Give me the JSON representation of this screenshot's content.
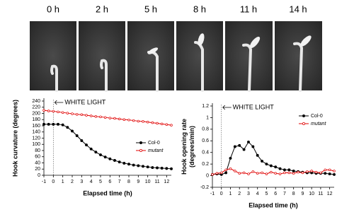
{
  "photo_strip": {
    "labels": [
      "0 h",
      "2 h",
      "5 h",
      "8 h",
      "11 h",
      "14 h"
    ]
  },
  "chart_data": [
    {
      "type": "line",
      "y_label": [
        "Hook curvature (degrees)"
      ],
      "x_label": "Elapsed time (h)",
      "annotation": "WHITE LIGHT",
      "vline": 0,
      "xlim": [
        -1,
        12.5
      ],
      "xticks": [
        -1,
        0,
        1,
        2,
        3,
        4,
        5,
        6,
        7,
        8,
        9,
        10,
        11,
        12
      ],
      "ylim": [
        0,
        240
      ],
      "yticks": [
        0,
        20,
        40,
        60,
        80,
        100,
        120,
        140,
        160,
        180,
        200,
        220,
        240
      ],
      "legend": "lower right",
      "x": [
        -1,
        -0.5,
        0,
        0.5,
        1,
        1.5,
        2,
        2.5,
        3,
        3.5,
        4,
        4.5,
        5,
        5.5,
        6,
        6.5,
        7,
        7.5,
        8,
        8.5,
        9,
        9.5,
        10,
        10.5,
        11,
        11.5,
        12,
        12.5
      ],
      "series": [
        {
          "name": "Col-0",
          "color": "#000000",
          "font_style": "normal",
          "values": [
            165,
            165,
            165,
            165,
            163,
            155,
            143,
            128,
            112,
            98,
            85,
            75,
            66,
            59,
            53,
            48,
            43,
            39,
            36,
            33,
            31,
            29,
            27,
            25,
            24,
            23,
            22,
            21
          ]
        },
        {
          "name": "mutant",
          "color": "#e00000",
          "font_style": "italic",
          "values": [
            210,
            208,
            207,
            205,
            203,
            201,
            199,
            197,
            196,
            194,
            192,
            190,
            189,
            187,
            185,
            184,
            182,
            180,
            179,
            177,
            175,
            174,
            172,
            170,
            168,
            166,
            164,
            162
          ]
        }
      ]
    },
    {
      "type": "line",
      "y_label": [
        "Hook opening rate",
        "(degrees/min)"
      ],
      "x_label": "Elapsed time (h)",
      "annotation": "WHITE LIGHT",
      "vline": 0,
      "xlim": [
        -1,
        12.5
      ],
      "xticks": [
        -1,
        0,
        1,
        2,
        3,
        4,
        5,
        6,
        7,
        8,
        9,
        10,
        11,
        12
      ],
      "ylim": [
        -0.2,
        1.2
      ],
      "yticks": [
        -0.2,
        0,
        0.2,
        0.4,
        0.6,
        0.8,
        1,
        1.2
      ],
      "legend": "upper right",
      "x": [
        -1,
        -0.5,
        0,
        0.5,
        1,
        1.5,
        2,
        2.5,
        3,
        3.5,
        4,
        4.5,
        5,
        5.5,
        6,
        6.5,
        7,
        7.5,
        8,
        8.5,
        9,
        9.5,
        10,
        10.5,
        11,
        11.5,
        12,
        12.5
      ],
      "series": [
        {
          "name": "Col-0",
          "color": "#000000",
          "font_style": "normal",
          "values": [
            0.02,
            0.03,
            0.02,
            0.05,
            0.3,
            0.5,
            0.52,
            0.45,
            0.58,
            0.5,
            0.35,
            0.25,
            0.2,
            0.17,
            0.15,
            0.12,
            0.1,
            0.1,
            0.08,
            0.07,
            0.06,
            0.05,
            0.05,
            0.04,
            0.04,
            0.04,
            0.03,
            0.02
          ]
        },
        {
          "name": "mutant",
          "color": "#e00000",
          "font_style": "italic",
          "values": [
            0.02,
            0.04,
            0.05,
            0.1,
            0.12,
            0.08,
            0.04,
            0.05,
            0.03,
            0.07,
            0.04,
            0.05,
            0.03,
            0.06,
            0.04,
            0.03,
            0.05,
            0.05,
            0.04,
            0.06,
            0.05,
            0.07,
            0.08,
            0.06,
            0.05,
            0.1,
            0.1,
            0.08
          ]
        }
      ]
    }
  ]
}
